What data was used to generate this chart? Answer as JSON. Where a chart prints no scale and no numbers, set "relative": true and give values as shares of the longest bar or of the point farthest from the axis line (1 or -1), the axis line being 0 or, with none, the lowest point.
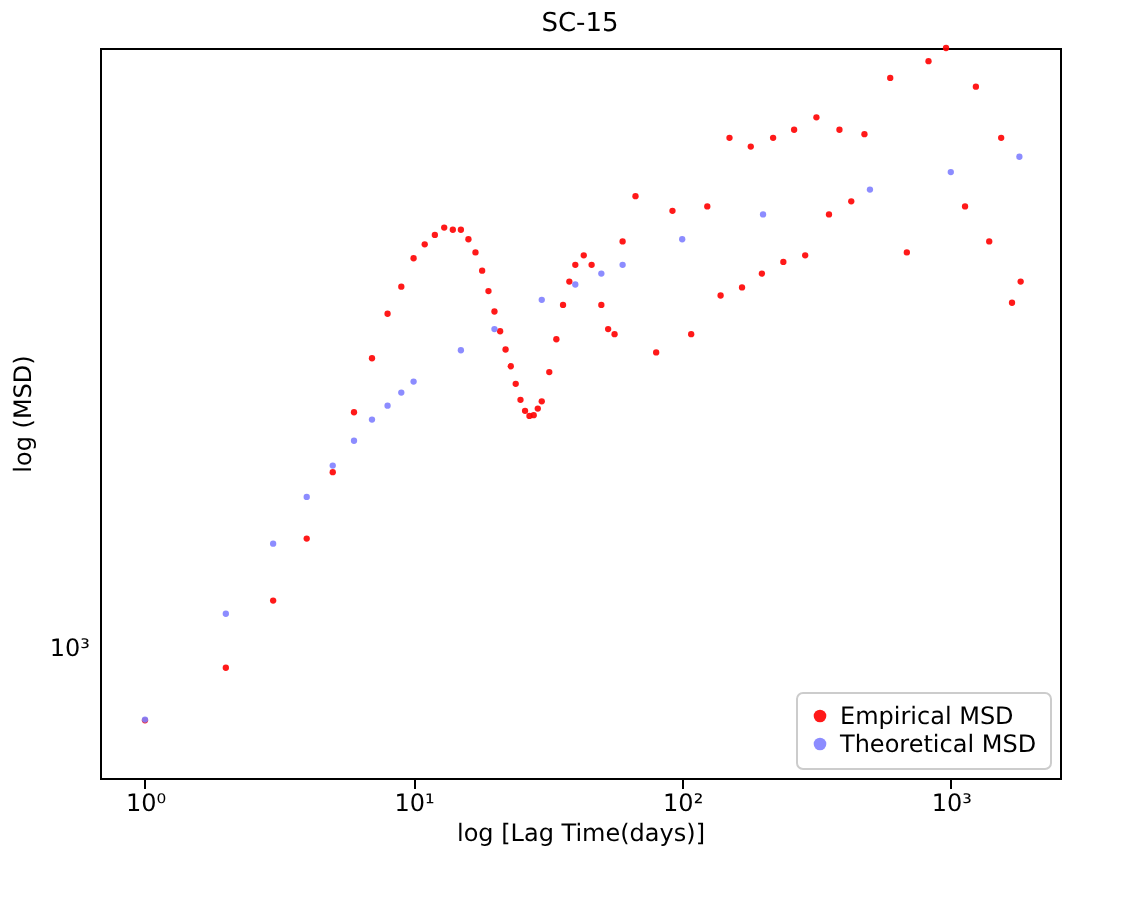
{
  "chart_data": {
    "type": "scatter",
    "title": "SC-15",
    "xlabel": "log [Lag Time(days)]",
    "ylabel": "log (MSD)",
    "log": "x",
    "marker": "circle",
    "grid": false,
    "legend": "bottom right",
    "relative": true,
    "annotations": [
      "10³"
    ],
    "xlim": [
      0.68,
      2550
    ],
    "xticks": [
      {
        "value": 1,
        "label": "10⁰"
      },
      {
        "value": 10,
        "label": "10¹"
      },
      {
        "value": 100,
        "label": "10²"
      },
      {
        "value": 1000,
        "label": "10³"
      }
    ],
    "series": [
      {
        "name": "Empirical MSD",
        "color": "#ff0000",
        "x": [
          1,
          2,
          3,
          4,
          5,
          6,
          7,
          8,
          9,
          10,
          11,
          12,
          13,
          14,
          15,
          16,
          17,
          18,
          19,
          20,
          21,
          22,
          23,
          24,
          25,
          26,
          27,
          28,
          29,
          30,
          32,
          34,
          36,
          38,
          40,
          43,
          46,
          50,
          53,
          56,
          60,
          67,
          80,
          92,
          108,
          124,
          139,
          150,
          167,
          180,
          198,
          218,
          238,
          261,
          287,
          316,
          352,
          385,
          426,
          477,
          595,
          686,
          826,
          960,
          1130,
          1240,
          1390,
          1540,
          1690,
          1820
        ],
        "values": [
          0.079,
          0.151,
          0.243,
          0.328,
          0.419,
          0.501,
          0.575,
          0.636,
          0.673,
          0.712,
          0.731,
          0.744,
          0.754,
          0.751,
          0.751,
          0.738,
          0.72,
          0.695,
          0.667,
          0.639,
          0.612,
          0.587,
          0.564,
          0.54,
          0.518,
          0.503,
          0.496,
          0.497,
          0.506,
          0.516,
          0.556,
          0.601,
          0.648,
          0.68,
          0.703,
          0.716,
          0.703,
          0.648,
          0.615,
          0.608,
          0.735,
          0.797,
          0.583,
          0.777,
          0.608,
          0.783,
          0.661,
          0.877,
          0.672,
          0.865,
          0.691,
          0.877,
          0.707,
          0.888,
          0.716,
          0.905,
          0.772,
          0.888,
          0.79,
          0.882,
          0.959,
          0.72,
          0.982,
          1,
          0.783,
          0.947,
          0.735,
          0.877,
          0.651,
          0.68
        ]
      },
      {
        "name": "Theoretical MSD",
        "color": "#7f7fff",
        "x": [
          1,
          2,
          3,
          4,
          5,
          6,
          7,
          8,
          9,
          10,
          15,
          20,
          30,
          40,
          50,
          60,
          100,
          200,
          500,
          1000,
          1800
        ],
        "values": [
          0.08,
          0.225,
          0.321,
          0.385,
          0.428,
          0.462,
          0.491,
          0.51,
          0.528,
          0.543,
          0.586,
          0.615,
          0.655,
          0.676,
          0.691,
          0.703,
          0.738,
          0.772,
          0.806,
          0.83,
          0.851
        ]
      }
    ]
  }
}
